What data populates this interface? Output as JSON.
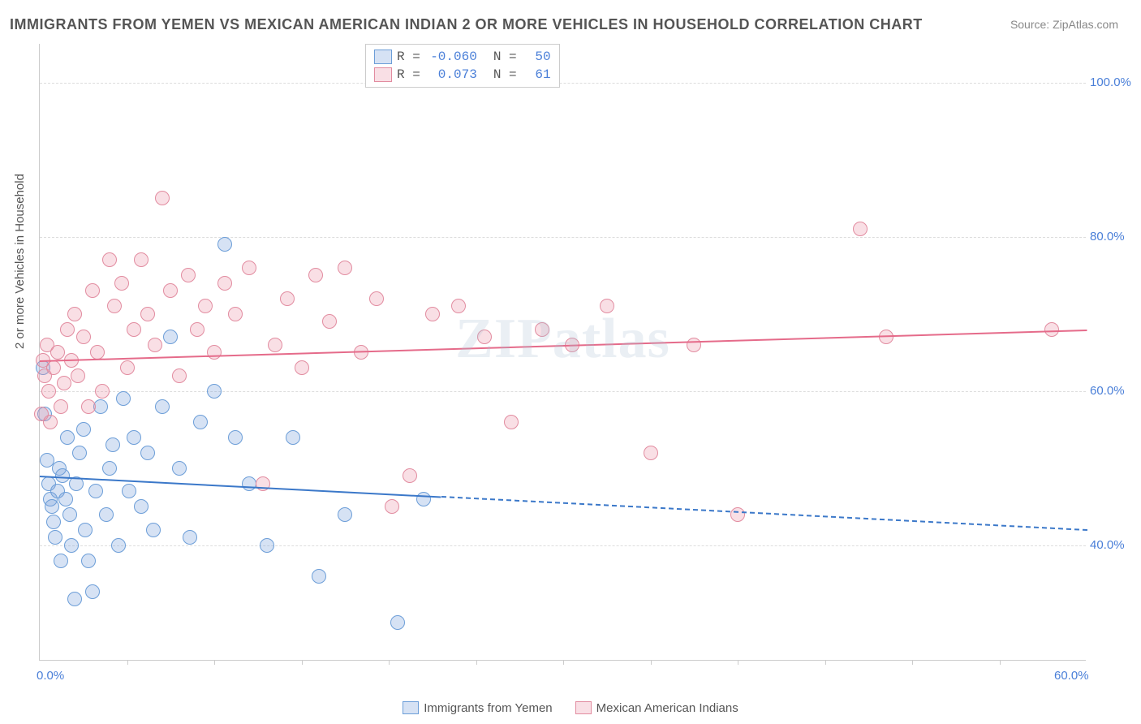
{
  "title": "IMMIGRANTS FROM YEMEN VS MEXICAN AMERICAN INDIAN 2 OR MORE VEHICLES IN HOUSEHOLD CORRELATION CHART",
  "source": "Source: ZipAtlas.com",
  "watermark": "ZIPatlas",
  "ylabel": "2 or more Vehicles in Household",
  "chart": {
    "type": "scatter",
    "xlim": [
      0,
      60
    ],
    "ylim": [
      25,
      105
    ],
    "x_ticks": [
      0,
      60
    ],
    "x_tick_labels": [
      "0.0%",
      "60.0%"
    ],
    "x_minor_ick_positions": [
      5,
      10,
      15,
      20,
      25,
      30,
      35,
      40,
      45,
      50,
      55
    ],
    "y_gridlines": [
      40,
      60,
      80,
      100
    ],
    "y_tick_labels": [
      "40.0%",
      "60.0%",
      "80.0%",
      "100.0%"
    ],
    "background_color": "#ffffff",
    "grid_color": "#dddddd",
    "axis_color": "#cccccc",
    "tick_label_color": "#4a7fd8",
    "label_fontsize": 15,
    "title_fontsize": 18,
    "marker_radius": 9,
    "marker_stroke_width": 1.5,
    "series": [
      {
        "name": "Immigrants from Yemen",
        "color_fill": "rgba(120,160,220,0.30)",
        "color_stroke": "#6c9ed8",
        "R": "-0.060",
        "N": "50",
        "trend": {
          "x1": 0,
          "y1": 49,
          "x2": 60,
          "y2": 42,
          "solid_until_x": 23,
          "color": "#3b78c9"
        },
        "points": [
          [
            0.2,
            63
          ],
          [
            0.3,
            57
          ],
          [
            0.4,
            51
          ],
          [
            0.5,
            48
          ],
          [
            0.6,
            46
          ],
          [
            0.7,
            45
          ],
          [
            0.8,
            43
          ],
          [
            0.9,
            41
          ],
          [
            1.0,
            47
          ],
          [
            1.1,
            50
          ],
          [
            1.2,
            38
          ],
          [
            1.3,
            49
          ],
          [
            1.5,
            46
          ],
          [
            1.6,
            54
          ],
          [
            1.7,
            44
          ],
          [
            1.8,
            40
          ],
          [
            2.0,
            33
          ],
          [
            2.1,
            48
          ],
          [
            2.3,
            52
          ],
          [
            2.5,
            55
          ],
          [
            2.6,
            42
          ],
          [
            2.8,
            38
          ],
          [
            3.0,
            34
          ],
          [
            3.2,
            47
          ],
          [
            3.5,
            58
          ],
          [
            3.8,
            44
          ],
          [
            4.0,
            50
          ],
          [
            4.2,
            53
          ],
          [
            4.5,
            40
          ],
          [
            4.8,
            59
          ],
          [
            5.1,
            47
          ],
          [
            5.4,
            54
          ],
          [
            5.8,
            45
          ],
          [
            6.2,
            52
          ],
          [
            6.5,
            42
          ],
          [
            7.0,
            58
          ],
          [
            7.5,
            67
          ],
          [
            8.0,
            50
          ],
          [
            8.6,
            41
          ],
          [
            9.2,
            56
          ],
          [
            10.0,
            60
          ],
          [
            10.6,
            79
          ],
          [
            11.2,
            54
          ],
          [
            12.0,
            48
          ],
          [
            13.0,
            40
          ],
          [
            14.5,
            54
          ],
          [
            16.0,
            36
          ],
          [
            17.5,
            44
          ],
          [
            20.5,
            30
          ],
          [
            22.0,
            46
          ]
        ]
      },
      {
        "name": "Mexican American Indians",
        "color_fill": "rgba(235,150,170,0.30)",
        "color_stroke": "#e28ca0",
        "R": "0.073",
        "N": "61",
        "trend": {
          "x1": 0,
          "y1": 64,
          "x2": 60,
          "y2": 68,
          "solid_until_x": 60,
          "color": "#e56b8a"
        },
        "points": [
          [
            0.1,
            57
          ],
          [
            0.2,
            64
          ],
          [
            0.3,
            62
          ],
          [
            0.4,
            66
          ],
          [
            0.5,
            60
          ],
          [
            0.6,
            56
          ],
          [
            0.8,
            63
          ],
          [
            1.0,
            65
          ],
          [
            1.2,
            58
          ],
          [
            1.4,
            61
          ],
          [
            1.6,
            68
          ],
          [
            1.8,
            64
          ],
          [
            2.0,
            70
          ],
          [
            2.2,
            62
          ],
          [
            2.5,
            67
          ],
          [
            2.8,
            58
          ],
          [
            3.0,
            73
          ],
          [
            3.3,
            65
          ],
          [
            3.6,
            60
          ],
          [
            4.0,
            77
          ],
          [
            4.3,
            71
          ],
          [
            4.7,
            74
          ],
          [
            5.0,
            63
          ],
          [
            5.4,
            68
          ],
          [
            5.8,
            77
          ],
          [
            6.2,
            70
          ],
          [
            6.6,
            66
          ],
          [
            7.0,
            85
          ],
          [
            7.5,
            73
          ],
          [
            8.0,
            62
          ],
          [
            8.5,
            75
          ],
          [
            9.0,
            68
          ],
          [
            9.5,
            71
          ],
          [
            10.0,
            65
          ],
          [
            10.6,
            74
          ],
          [
            11.2,
            70
          ],
          [
            12.0,
            76
          ],
          [
            12.8,
            48
          ],
          [
            13.5,
            66
          ],
          [
            14.2,
            72
          ],
          [
            15.0,
            63
          ],
          [
            15.8,
            75
          ],
          [
            16.6,
            69
          ],
          [
            17.5,
            76
          ],
          [
            18.4,
            65
          ],
          [
            19.3,
            72
          ],
          [
            20.2,
            45
          ],
          [
            21.2,
            49
          ],
          [
            22.5,
            70
          ],
          [
            24.0,
            71
          ],
          [
            25.5,
            67
          ],
          [
            27.0,
            56
          ],
          [
            28.8,
            68
          ],
          [
            30.5,
            66
          ],
          [
            32.5,
            71
          ],
          [
            35.0,
            52
          ],
          [
            37.5,
            66
          ],
          [
            40.0,
            44
          ],
          [
            47.0,
            81
          ],
          [
            48.5,
            67
          ],
          [
            58.0,
            68
          ]
        ]
      }
    ]
  },
  "legend_top": {
    "r_label": "R =",
    "n_label": "N ="
  },
  "legend_bottom": {
    "items": [
      "Immigrants from Yemen",
      "Mexican American Indians"
    ]
  }
}
